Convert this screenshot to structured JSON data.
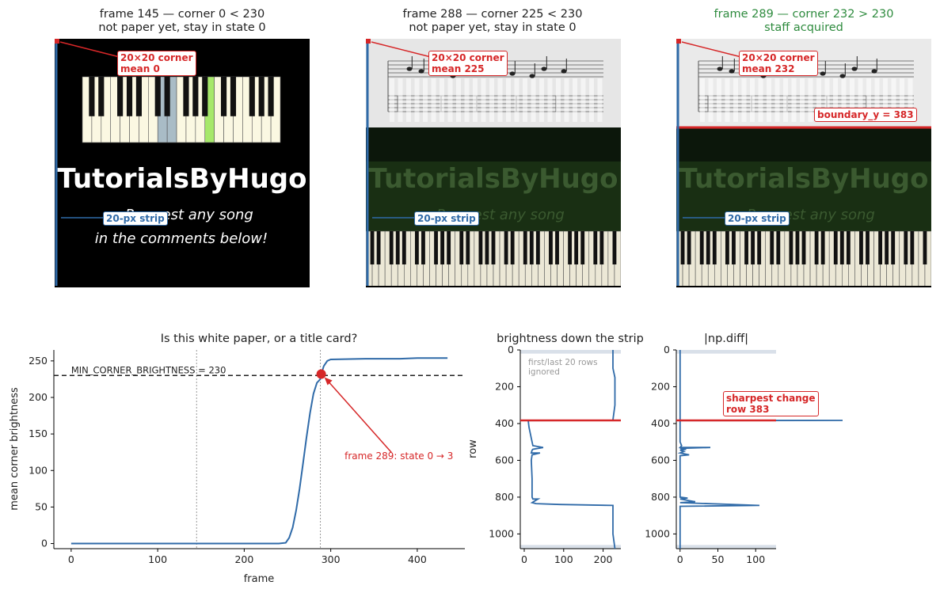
{
  "frames": [
    {
      "title_line1": "frame 145 — corner 0 < 230",
      "title_line2": "not paper yet, stay in state 0",
      "title_color": "#222222",
      "corner_label": "20×20 corner\nmean 0",
      "strip_label": "20-px strip",
      "boundary_label": "",
      "watermark": "TutorialsByHugo",
      "sub1": "Request any song",
      "sub2": "in the comments below!"
    },
    {
      "title_line1": "frame 288 — corner 225 < 230",
      "title_line2": "not paper yet, stay in state 0",
      "title_color": "#222222",
      "corner_label": "20×20 corner\nmean 225",
      "strip_label": "20-px strip",
      "boundary_label": "",
      "watermark": "TutorialsByHugo",
      "sub1": "Request any song",
      "sub2": "in the comments below!"
    },
    {
      "title_line1": "frame 289 — corner 232 > 230",
      "title_line2": "staff acquired",
      "title_color": "#2e8b3e",
      "corner_label": "20×20 corner\nmean 232",
      "strip_label": "20-px strip",
      "boundary_label": "boundary_y = 383",
      "watermark": "TutorialsByHugo",
      "sub1": "Request any song",
      "sub2": "in the comments below!"
    }
  ],
  "chart_data": [
    {
      "type": "line",
      "title": "Is this white paper, or a title card?",
      "xlabel": "frame",
      "ylabel": "mean corner brightness",
      "xlim": [
        -20,
        455
      ],
      "ylim": [
        -7,
        265
      ],
      "xticks": [
        0,
        100,
        200,
        300,
        400
      ],
      "yticks": [
        0,
        50,
        100,
        150,
        200,
        250
      ],
      "series": [
        {
          "color": "#2f6aa8",
          "x": [
            0,
            100,
            200,
            240,
            248,
            252,
            256,
            260,
            264,
            268,
            272,
            276,
            280,
            284,
            288,
            289,
            292,
            296,
            300,
            340,
            380,
            400,
            435
          ],
          "y": [
            0,
            0,
            0,
            0,
            1,
            8,
            22,
            45,
            75,
            110,
            145,
            178,
            205,
            220,
            225,
            232,
            243,
            250,
            252,
            253,
            253,
            254,
            254
          ]
        }
      ],
      "threshold": {
        "y": 230,
        "label": "MIN_CORNER_BRIGHTNESS = 230"
      },
      "vlines": [
        145,
        288
      ],
      "marker": {
        "x": 289,
        "y": 232,
        "color": "#d62728"
      },
      "annotation": {
        "text": "frame 289: state 0 → 3",
        "color": "#d62728"
      }
    },
    {
      "type": "line",
      "title": "brightness down the strip",
      "ylabel": "row",
      "xlim": [
        -10,
        245
      ],
      "ylim": [
        1080,
        0
      ],
      "xticks": [
        0,
        100,
        200
      ],
      "yticks": [
        0,
        200,
        400,
        600,
        800,
        1000
      ],
      "note": "first/last 20 rows\nignored",
      "boundary_row": 383,
      "ignored_rows": 20,
      "series": [
        {
          "color": "#2f6aa8",
          "x": [
            225,
            225,
            230,
            230,
            225,
            225,
            10,
            12,
            18,
            22,
            48,
            22,
            20,
            18,
            40,
            20,
            18,
            20,
            20,
            22,
            35,
            20,
            30,
            90,
            225,
            225,
            230
          ],
          "y": [
            0,
            100,
            150,
            300,
            380,
            383,
            384,
            420,
            480,
            520,
            530,
            540,
            545,
            560,
            560,
            570,
            600,
            700,
            800,
            810,
            810,
            830,
            835,
            840,
            845,
            1000,
            1080
          ]
        }
      ]
    },
    {
      "type": "line",
      "title": "|np.diff|",
      "xlim": [
        -5,
        127
      ],
      "ylim": [
        1080,
        0
      ],
      "xticks": [
        0,
        50,
        100
      ],
      "yticks": [
        0,
        200,
        400,
        600,
        800,
        1000
      ],
      "boundary_row": 383,
      "ignored_rows": 20,
      "annotation": {
        "text": "sharpest change\nrow 383",
        "color": "#d62728"
      },
      "series": [
        {
          "color": "#2f6aa8",
          "x": [
            0,
            0,
            0,
            215,
            0,
            0,
            2,
            0,
            40,
            0,
            8,
            0,
            5,
            0,
            12,
            0,
            0,
            0,
            10,
            0,
            20,
            0,
            105,
            0,
            0
          ],
          "y": [
            0,
            380,
            383,
            383,
            384,
            500,
            520,
            530,
            530,
            535,
            540,
            545,
            552,
            560,
            570,
            575,
            700,
            800,
            805,
            810,
            825,
            830,
            845,
            850,
            1080
          ]
        }
      ]
    }
  ]
}
